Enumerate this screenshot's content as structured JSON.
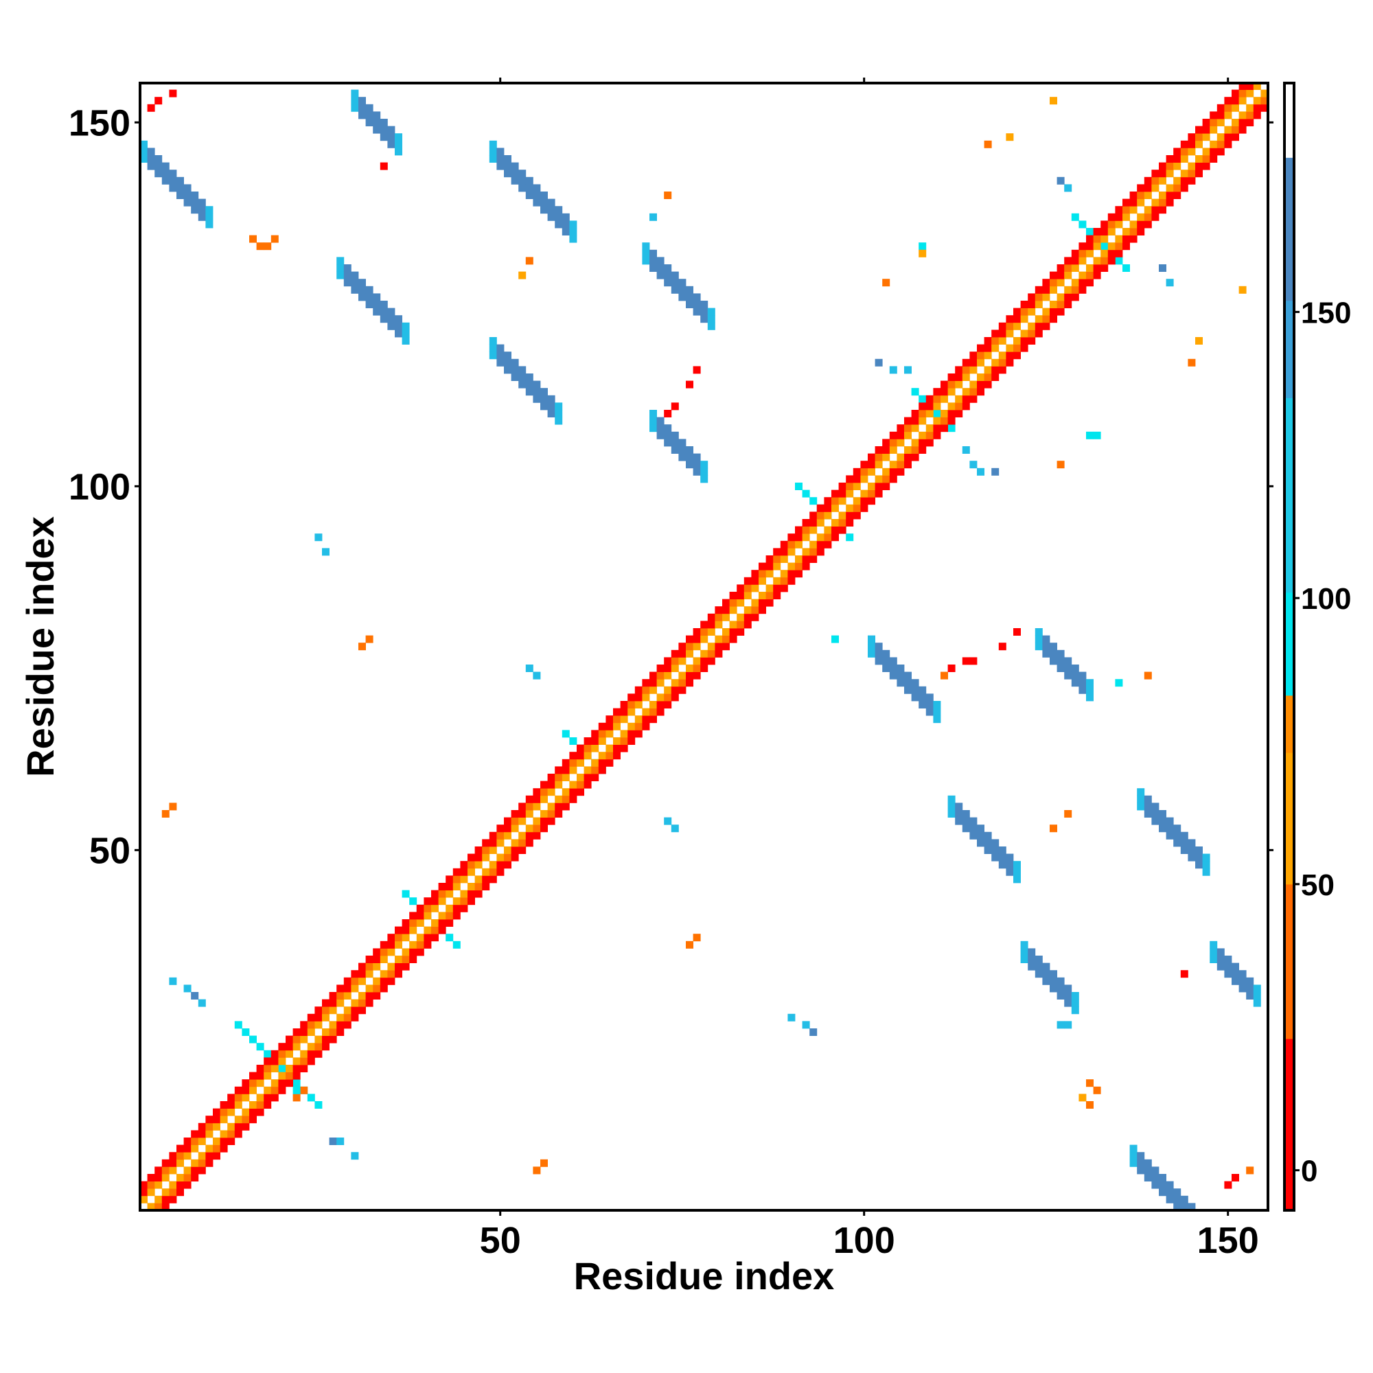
{
  "chart_data": {
    "type": "heatmap",
    "title": "",
    "xlabel": "Residue index",
    "ylabel": "Residue index",
    "xlim": [
      1,
      155
    ],
    "ylim": [
      1,
      155
    ],
    "x_ticks": [
      50,
      100,
      150
    ],
    "y_ticks": [
      50,
      100,
      150
    ],
    "x_tick_labels": [
      "50",
      "100",
      "150"
    ],
    "y_tick_labels": [
      "50",
      "100",
      "150"
    ],
    "grid": false,
    "legend": "colorbar-right",
    "colorbar": {
      "ticks": [
        0,
        50,
        100,
        150
      ],
      "tick_labels": [
        "0",
        "50",
        "100",
        "150"
      ],
      "range": [
        -7,
        190
      ],
      "bands": [
        {
          "from": -7,
          "to": 23,
          "color": "#ff0000"
        },
        {
          "from": 23,
          "to": 50,
          "color": "#ff6a00"
        },
        {
          "from": 50,
          "to": 73,
          "color": "#ffa500"
        },
        {
          "from": 73,
          "to": 83,
          "color": "#ff8c00"
        },
        {
          "from": 83,
          "to": 101,
          "color": "#00e5ee"
        },
        {
          "from": 101,
          "to": 135,
          "color": "#1ec8e6"
        },
        {
          "from": 135,
          "to": 152,
          "color": "#3ba0d8"
        },
        {
          "from": 152,
          "to": 177,
          "color": "#4a86c0"
        },
        {
          "from": 177,
          "to": 190,
          "color": "#ffffff"
        }
      ]
    },
    "category_colors": {
      "r": "#ff0000",
      "o": "#ff7200",
      "y": "#ffa500",
      "c": "#00e5ee",
      "m": "#23bde6",
      "b": "#4a86c0"
    },
    "diagonal": {
      "from": 1,
      "to": 154,
      "inner": "y",
      "outer": "r"
    },
    "bands": [
      {
        "x": 20,
        "y": 20,
        "len": 12,
        "w": 1,
        "orient": "cross",
        "color": "c"
      },
      {
        "x": 41,
        "y": 40,
        "len": 8,
        "w": 1,
        "orient": "cross",
        "color": "c"
      },
      {
        "x": 62,
        "y": 63,
        "len": 6,
        "w": 1,
        "orient": "cross",
        "color": "c"
      },
      {
        "x": 95,
        "y": 96,
        "len": 8,
        "w": 1,
        "orient": "cross",
        "color": "c"
      },
      {
        "x": 110,
        "y": 110,
        "len": 6,
        "w": 1,
        "orient": "cross",
        "color": "c"
      },
      {
        "x": 133,
        "y": 133,
        "len": 8,
        "w": 1,
        "orient": "cross",
        "color": "c"
      },
      {
        "x": 1,
        "y": 147,
        "len": 10,
        "w": 3,
        "orient": "anti",
        "color": "b"
      },
      {
        "x": 30,
        "y": 154,
        "len": 7,
        "w": 3,
        "orient": "anti",
        "color": "b"
      },
      {
        "x": 49,
        "y": 147,
        "len": 12,
        "w": 3,
        "orient": "anti",
        "color": "b"
      },
      {
        "x": 28,
        "y": 131,
        "len": 10,
        "w": 3,
        "orient": "anti",
        "color": "b"
      },
      {
        "x": 70,
        "y": 133,
        "len": 10,
        "w": 3,
        "orient": "anti",
        "color": "b"
      },
      {
        "x": 49,
        "y": 120,
        "len": 10,
        "w": 3,
        "orient": "anti",
        "color": "b"
      },
      {
        "x": 71,
        "y": 110,
        "len": 8,
        "w": 3,
        "orient": "anti",
        "color": "b"
      },
      {
        "x": 101,
        "y": 79,
        "len": 10,
        "w": 3,
        "orient": "anti",
        "color": "b"
      },
      {
        "x": 124,
        "y": 80,
        "len": 8,
        "w": 3,
        "orient": "anti",
        "color": "b"
      },
      {
        "x": 112,
        "y": 57,
        "len": 10,
        "w": 3,
        "orient": "anti",
        "color": "b"
      },
      {
        "x": 138,
        "y": 58,
        "len": 10,
        "w": 3,
        "orient": "anti",
        "color": "b"
      },
      {
        "x": 122,
        "y": 37,
        "len": 8,
        "w": 3,
        "orient": "anti",
        "color": "b"
      },
      {
        "x": 148,
        "y": 37,
        "len": 7,
        "w": 3,
        "orient": "anti",
        "color": "b"
      },
      {
        "x": 137,
        "y": 9,
        "len": 10,
        "w": 3,
        "orient": "anti",
        "color": "b"
      }
    ],
    "cells": [
      {
        "x": 2,
        "y": 152,
        "c": "r"
      },
      {
        "x": 3,
        "y": 153,
        "c": "r"
      },
      {
        "x": 5,
        "y": 154,
        "c": "r"
      },
      {
        "x": 34,
        "y": 144,
        "c": "r"
      },
      {
        "x": 73,
        "y": 140,
        "c": "o"
      },
      {
        "x": 71,
        "y": 137,
        "c": "m"
      },
      {
        "x": 17,
        "y": 133,
        "c": "o"
      },
      {
        "x": 18,
        "y": 133,
        "c": "o"
      },
      {
        "x": 19,
        "y": 134,
        "c": "o"
      },
      {
        "x": 16,
        "y": 134,
        "c": "o"
      },
      {
        "x": 54,
        "y": 131,
        "c": "o"
      },
      {
        "x": 53,
        "y": 129,
        "c": "y"
      },
      {
        "x": 77,
        "y": 116,
        "c": "r"
      },
      {
        "x": 76,
        "y": 114,
        "c": "r"
      },
      {
        "x": 74,
        "y": 111,
        "c": "r"
      },
      {
        "x": 73,
        "y": 110,
        "c": "r"
      },
      {
        "x": 25,
        "y": 93,
        "c": "m"
      },
      {
        "x": 26,
        "y": 91,
        "c": "m"
      },
      {
        "x": 31,
        "y": 78,
        "c": "o"
      },
      {
        "x": 32,
        "y": 79,
        "c": "o"
      },
      {
        "x": 54,
        "y": 75,
        "c": "m"
      },
      {
        "x": 55,
        "y": 74,
        "c": "m"
      },
      {
        "x": 4,
        "y": 55,
        "c": "o"
      },
      {
        "x": 5,
        "y": 56,
        "c": "o"
      },
      {
        "x": 73,
        "y": 54,
        "c": "m"
      },
      {
        "x": 74,
        "y": 53,
        "c": "m"
      },
      {
        "x": 76,
        "y": 37,
        "c": "o"
      },
      {
        "x": 77,
        "y": 38,
        "c": "o"
      },
      {
        "x": 90,
        "y": 27,
        "c": "m"
      },
      {
        "x": 92,
        "y": 26,
        "c": "m"
      },
      {
        "x": 93,
        "y": 25,
        "c": "b"
      },
      {
        "x": 55,
        "y": 6,
        "c": "o"
      },
      {
        "x": 56,
        "y": 7,
        "c": "o"
      },
      {
        "x": 30,
        "y": 8,
        "c": "m"
      },
      {
        "x": 27,
        "y": 10,
        "c": "b"
      },
      {
        "x": 28,
        "y": 10,
        "c": "m"
      },
      {
        "x": 22,
        "y": 16,
        "c": "o"
      },
      {
        "x": 23,
        "y": 17,
        "c": "o"
      },
      {
        "x": 22,
        "y": 17,
        "c": "c"
      },
      {
        "x": 5,
        "y": 32,
        "c": "m"
      },
      {
        "x": 7,
        "y": 31,
        "c": "m"
      },
      {
        "x": 8,
        "y": 30,
        "c": "b"
      },
      {
        "x": 9,
        "y": 29,
        "c": "m"
      },
      {
        "x": 126,
        "y": 153,
        "c": "y"
      },
      {
        "x": 117,
        "y": 147,
        "c": "o"
      },
      {
        "x": 120,
        "y": 148,
        "c": "y"
      },
      {
        "x": 127,
        "y": 142,
        "c": "b"
      },
      {
        "x": 128,
        "y": 141,
        "c": "m"
      },
      {
        "x": 108,
        "y": 133,
        "c": "c"
      },
      {
        "x": 108,
        "y": 132,
        "c": "y"
      },
      {
        "x": 103,
        "y": 128,
        "c": "o"
      },
      {
        "x": 152,
        "y": 127,
        "c": "y"
      },
      {
        "x": 141,
        "y": 130,
        "c": "b"
      },
      {
        "x": 142,
        "y": 128,
        "c": "m"
      },
      {
        "x": 146,
        "y": 120,
        "c": "y"
      },
      {
        "x": 145,
        "y": 117,
        "c": "o"
      },
      {
        "x": 102,
        "y": 117,
        "c": "b"
      },
      {
        "x": 104,
        "y": 116,
        "c": "m"
      },
      {
        "x": 106,
        "y": 116,
        "c": "m"
      },
      {
        "x": 131,
        "y": 107,
        "c": "c"
      },
      {
        "x": 132,
        "y": 107,
        "c": "c"
      },
      {
        "x": 114,
        "y": 105,
        "c": "m"
      },
      {
        "x": 115,
        "y": 103,
        "c": "m"
      },
      {
        "x": 127,
        "y": 103,
        "c": "o"
      },
      {
        "x": 116,
        "y": 102,
        "c": "m"
      },
      {
        "x": 118,
        "y": 102,
        "c": "b"
      },
      {
        "x": 114,
        "y": 76,
        "c": "r"
      },
      {
        "x": 115,
        "y": 76,
        "c": "r"
      },
      {
        "x": 119,
        "y": 78,
        "c": "r"
      },
      {
        "x": 121,
        "y": 80,
        "c": "r"
      },
      {
        "x": 112,
        "y": 75,
        "c": "r"
      },
      {
        "x": 111,
        "y": 74,
        "c": "o"
      },
      {
        "x": 96,
        "y": 79,
        "c": "c"
      },
      {
        "x": 135,
        "y": 73,
        "c": "c"
      },
      {
        "x": 139,
        "y": 74,
        "c": "o"
      },
      {
        "x": 128,
        "y": 55,
        "c": "o"
      },
      {
        "x": 126,
        "y": 53,
        "c": "o"
      },
      {
        "x": 144,
        "y": 33,
        "c": "r"
      },
      {
        "x": 127,
        "y": 26,
        "c": "m"
      },
      {
        "x": 128,
        "y": 26,
        "c": "m"
      },
      {
        "x": 131,
        "y": 18,
        "c": "o"
      },
      {
        "x": 132,
        "y": 17,
        "c": "o"
      },
      {
        "x": 130,
        "y": 16,
        "c": "y"
      },
      {
        "x": 131,
        "y": 15,
        "c": "o"
      },
      {
        "x": 153,
        "y": 6,
        "c": "o"
      },
      {
        "x": 151,
        "y": 5,
        "c": "r"
      },
      {
        "x": 150,
        "y": 4,
        "c": "r"
      }
    ]
  }
}
